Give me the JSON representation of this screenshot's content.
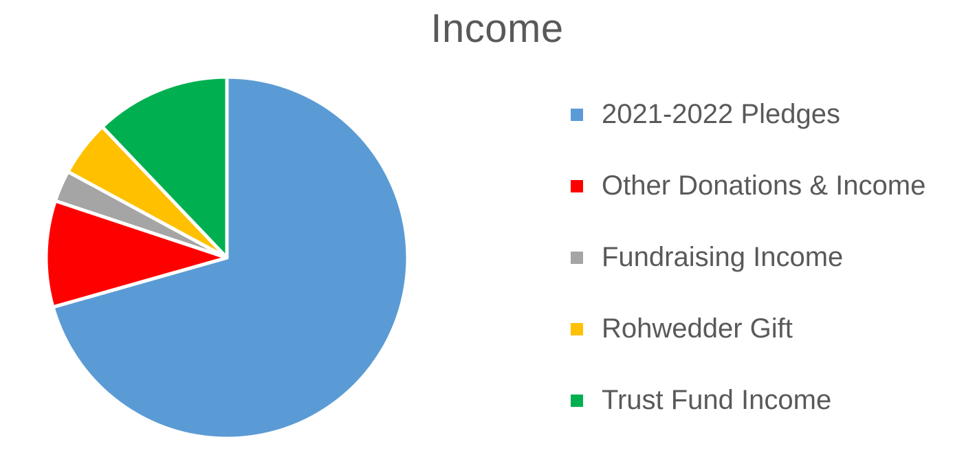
{
  "chart_data": {
    "type": "pie",
    "title": "Income",
    "categories": [
      "2021-2022 Pledges",
      "Other Donations & Income",
      "Fundraising Income",
      "Rohwedder Gift",
      "Trust Fund Income"
    ],
    "values": [
      70.6,
      9.5,
      2.8,
      5.0,
      12.1
    ],
    "value_unit": "percent (estimated)",
    "colors": [
      "#5B9BD5",
      "#FF0000",
      "#A5A5A5",
      "#FFC000",
      "#00B050"
    ],
    "start_angle_deg": 0,
    "direction": "clockwise",
    "legend_position": "right"
  }
}
